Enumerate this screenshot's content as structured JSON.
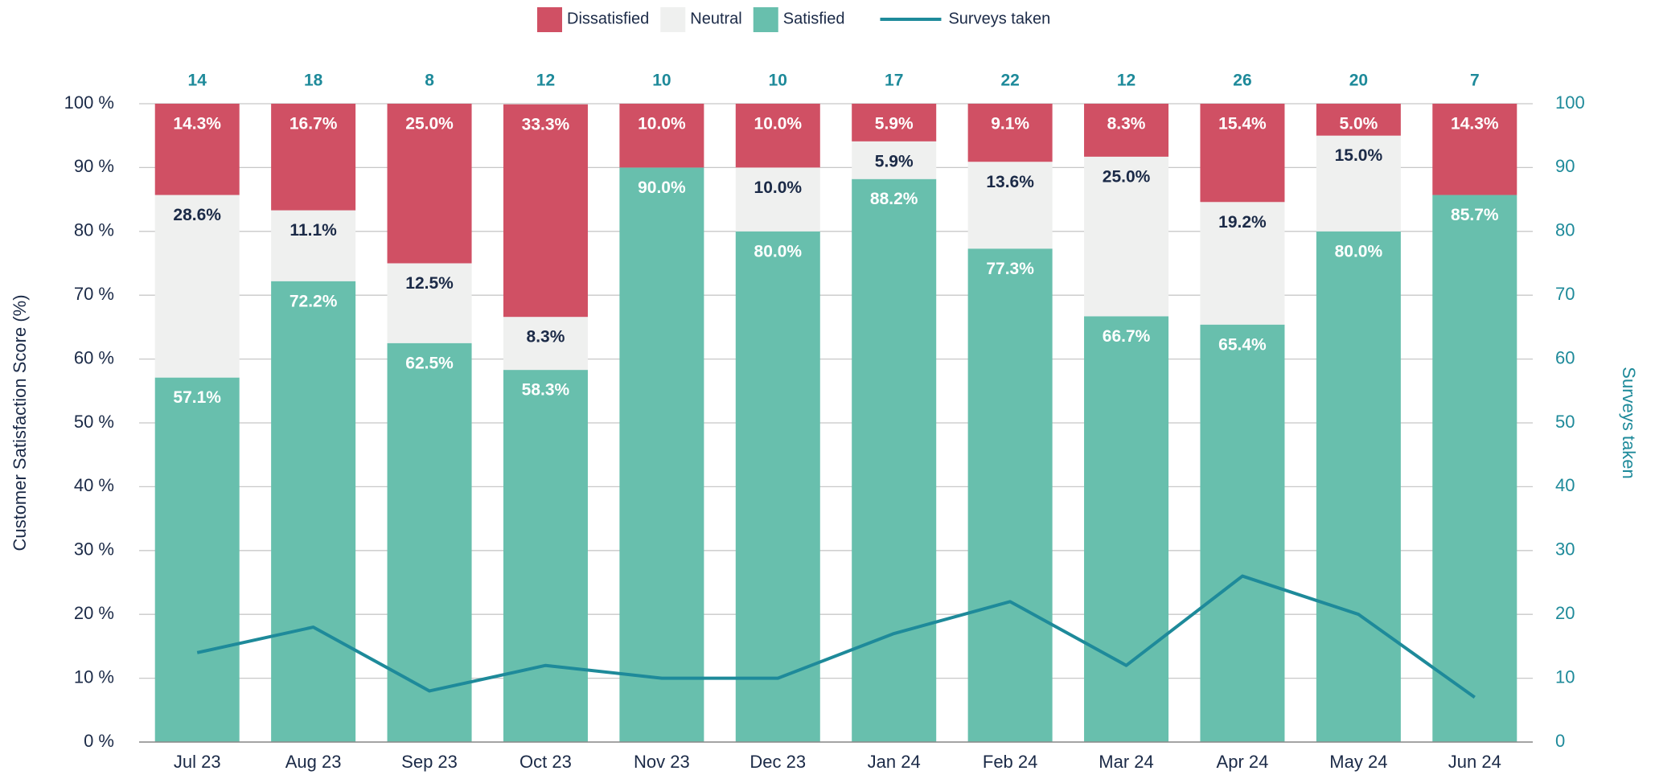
{
  "chart_data": {
    "type": "stacked-bar-line",
    "categories": [
      "Jul 23",
      "Aug 23",
      "Sep 23",
      "Oct 23",
      "Nov 23",
      "Dec 23",
      "Jan 24",
      "Feb 24",
      "Mar 24",
      "Apr 24",
      "May 24",
      "Jun 24"
    ],
    "series": [
      {
        "name": "Dissatisfied",
        "color": "#d05064",
        "label_color": "#ffffff",
        "values": [
          14.3,
          16.7,
          25.0,
          33.3,
          10.0,
          10.0,
          5.9,
          9.1,
          8.3,
          15.4,
          5.0,
          14.3
        ],
        "value_labels": [
          "14.3%",
          "16.7%",
          "25.0%",
          "33.3%",
          "10.0%",
          "10.0%",
          "5.9%",
          "9.1%",
          "8.3%",
          "15.4%",
          "5.0%",
          "14.3%"
        ]
      },
      {
        "name": "Neutral",
        "color": "#eff0ef",
        "label_color": "#1b2a47",
        "values": [
          28.6,
          11.1,
          12.5,
          8.3,
          0,
          10.0,
          5.9,
          13.6,
          25.0,
          19.2,
          15.0,
          0
        ],
        "value_labels": [
          "28.6%",
          "11.1%",
          "12.5%",
          "8.3%",
          null,
          "10.0%",
          "5.9%",
          "13.6%",
          "25.0%",
          "19.2%",
          "15.0%",
          null
        ]
      },
      {
        "name": "Satisfied",
        "color": "#68bfad",
        "label_color": "#ffffff",
        "values": [
          57.1,
          72.2,
          62.5,
          58.3,
          90.0,
          80.0,
          88.2,
          77.3,
          66.7,
          65.4,
          80.0,
          85.7
        ],
        "value_labels": [
          "57.1%",
          "72.2%",
          "62.5%",
          "58.3%",
          "90.0%",
          "80.0%",
          "88.2%",
          "77.3%",
          "66.7%",
          "65.4%",
          "80.0%",
          "85.7%"
        ]
      },
      {
        "name": "Surveys taken",
        "color": "#1e8a9a",
        "axis": "y2",
        "values": [
          14,
          18,
          8,
          12,
          10,
          10,
          17,
          22,
          12,
          26,
          20,
          7
        ]
      }
    ],
    "ylabel": "Customer Satisfaction Score (%)",
    "y2label": "Surveys taken",
    "ylim": [
      0,
      100
    ],
    "yticks": [
      {
        "value": 0,
        "label": "0 %"
      },
      {
        "value": 10,
        "label": "10 %"
      },
      {
        "value": 20,
        "label": "20 %"
      },
      {
        "value": 30,
        "label": "30 %"
      },
      {
        "value": 40,
        "label": "40 %"
      },
      {
        "value": 50,
        "label": "50 %"
      },
      {
        "value": 60,
        "label": "60 %"
      },
      {
        "value": 70,
        "label": "70 %"
      },
      {
        "value": 80,
        "label": "80 %"
      },
      {
        "value": 90,
        "label": "90 %"
      },
      {
        "value": 100,
        "label": "100 %"
      }
    ],
    "y2lim": [
      0,
      100
    ],
    "y2ticks": [
      0,
      10,
      20,
      30,
      40,
      50,
      60,
      70,
      80,
      90,
      100
    ],
    "grid": true,
    "legend": "top"
  }
}
